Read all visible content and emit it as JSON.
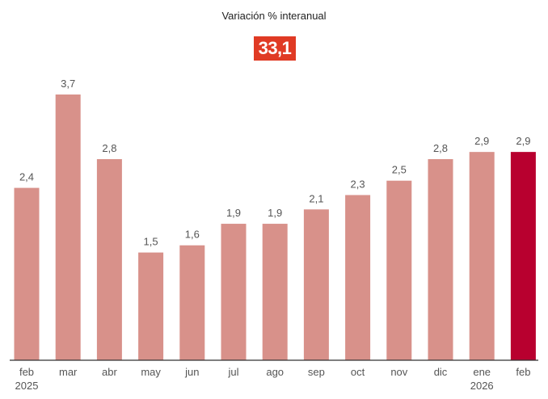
{
  "header": {
    "title": "Variación % interanual",
    "badge_value": "33,1"
  },
  "colors": {
    "bar": "#d8918a",
    "highlight": "#b8002f",
    "badge": "#e03a24"
  },
  "chart_data": {
    "type": "bar",
    "categories": [
      "feb",
      "mar",
      "abr",
      "may",
      "jun",
      "jul",
      "ago",
      "sep",
      "oct",
      "nov",
      "dic",
      "ene",
      "feb"
    ],
    "year_labels": [
      "2025",
      "",
      "",
      "",
      "",
      "",
      "",
      "",
      "",
      "",
      "",
      "2026",
      ""
    ],
    "values": [
      2.4,
      3.7,
      2.8,
      1.5,
      1.6,
      1.9,
      1.9,
      2.1,
      2.3,
      2.5,
      2.8,
      2.9,
      2.9
    ],
    "value_labels": [
      "2,4",
      "3,7",
      "2,8",
      "1,5",
      "1,6",
      "1,9",
      "1,9",
      "2,1",
      "2,3",
      "2,5",
      "2,8",
      "2,9",
      "2,9"
    ],
    "highlight_index": 12,
    "ylim": [
      0,
      3.7
    ],
    "grid": false,
    "legend": "none"
  }
}
